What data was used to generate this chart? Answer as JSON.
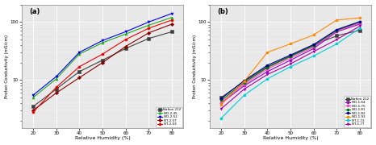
{
  "x": [
    20,
    30,
    40,
    50,
    60,
    70,
    80
  ],
  "panel_a": {
    "title": "(a)",
    "series": [
      {
        "label": "Nafion 212",
        "color": "#404040",
        "marker": "s",
        "markerfc": "#404040",
        "values": [
          3.5,
          7.0,
          14.0,
          22.0,
          35.0,
          52.0,
          68.0
        ]
      },
      {
        "label": "S/D-2.45",
        "color": "#22aa22",
        "marker": "^",
        "markerfc": "#22aa22",
        "values": [
          5.0,
          10.5,
          28.0,
          44.0,
          62.0,
          88.0,
          120.0
        ]
      },
      {
        "label": "S/D-2.52",
        "color": "#0000ee",
        "marker": "v",
        "markerfc": "#0000ee",
        "values": [
          5.5,
          11.5,
          30.0,
          48.0,
          68.0,
          100.0,
          140.0
        ]
      },
      {
        "label": "S/T-2.07",
        "color": "#880000",
        "marker": "D",
        "markerfc": "#880000",
        "values": [
          3.0,
          6.0,
          11.0,
          20.0,
          38.0,
          65.0,
          92.0
        ]
      },
      {
        "label": "S/T-2.03",
        "color": "#ee0000",
        "marker": "o",
        "markerfc": "#ee0000",
        "values": [
          2.8,
          7.5,
          17.0,
          28.0,
          50.0,
          78.0,
          108.0
        ]
      }
    ]
  },
  "panel_b": {
    "title": "(b)",
    "series": [
      {
        "label": "Nafion 212",
        "color": "#404040",
        "marker": "s",
        "markerfc": "#404040",
        "values": [
          5.0,
          9.5,
          17.0,
          26.0,
          40.0,
          58.0,
          72.0
        ]
      },
      {
        "label": "S/D-1.64",
        "color": "#9900cc",
        "marker": "o",
        "markerfc": "#9900cc",
        "values": [
          4.0,
          8.0,
          14.0,
          22.0,
          35.0,
          68.0,
          92.0
        ]
      },
      {
        "label": "S/D-1.75",
        "color": "#ff44cc",
        "marker": "o",
        "markerfc": "#ff44cc",
        "values": [
          4.2,
          8.5,
          15.5,
          24.0,
          37.0,
          70.0,
          96.0
        ]
      },
      {
        "label": "S/D-1.81",
        "color": "#007700",
        "marker": "o",
        "markerfc": "#007700",
        "values": [
          4.5,
          9.0,
          16.5,
          25.5,
          39.0,
          72.0,
          100.0
        ]
      },
      {
        "label": "S/D-1.82",
        "color": "#000099",
        "marker": "o",
        "markerfc": "#000099",
        "values": [
          4.8,
          9.8,
          18.0,
          27.0,
          41.0,
          74.0,
          102.0
        ]
      },
      {
        "label": "S/D-1.93",
        "color": "#ff8800",
        "marker": "o",
        "markerfc": "#ff8800",
        "values": [
          3.8,
          9.5,
          30.0,
          42.0,
          60.0,
          108.0,
          118.0
        ]
      },
      {
        "label": "S/T-1.72",
        "color": "#00ccdd",
        "marker": "o",
        "markerfc": "#00ccdd",
        "values": [
          2.2,
          5.5,
          10.5,
          17.0,
          26.0,
          42.0,
          78.0
        ]
      },
      {
        "label": "S/T-1.77",
        "color": "#aa00aa",
        "marker": "v",
        "markerfc": "#aa00aa",
        "values": [
          3.2,
          7.0,
          12.5,
          19.0,
          31.0,
          50.0,
          85.0
        ]
      }
    ]
  },
  "xlabel": "Relative Humidity (%)",
  "ylabel": "Proton Conductivity (mS/cm)",
  "xlim": [
    15,
    85
  ],
  "xticks": [
    20,
    30,
    40,
    50,
    60,
    70,
    80
  ],
  "ylim": [
    1.5,
    200
  ],
  "yticks": [
    10,
    100
  ],
  "background_color": "#e8e8e8",
  "figure_color": "#ffffff"
}
